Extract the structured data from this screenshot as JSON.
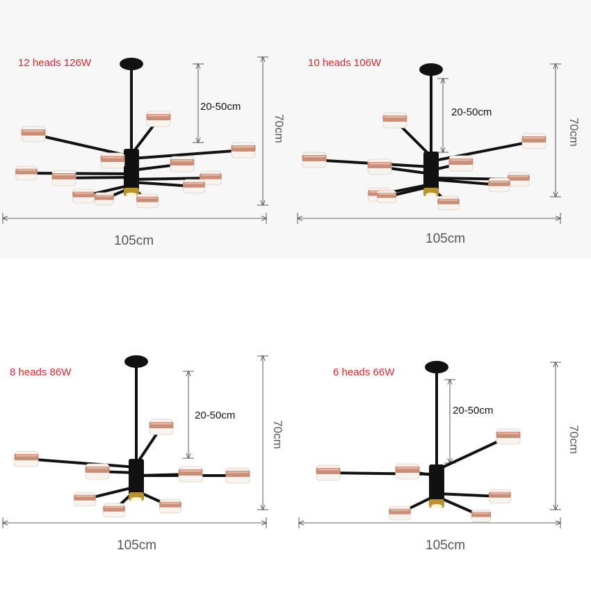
{
  "colors": {
    "accent_red": "#e0242d",
    "lamp_black": "#111111",
    "copper": "#c98d78",
    "shade": "#f8f3ef",
    "gold_ring": "#b8922e",
    "dim_line": "#666666",
    "panel_bg": "#f7f7f7"
  },
  "variants": [
    {
      "model": "12 heads 126W",
      "width": "105cm",
      "height": "70cm",
      "drop": "20-50cm",
      "heads": 12
    },
    {
      "model": "10 heads 106W",
      "width": "105cm",
      "height": "70cm",
      "drop": "20-50cm",
      "heads": 10
    },
    {
      "model": "8 heads 86W",
      "width": "105cm",
      "height": "70cm",
      "drop": "20-50cm",
      "heads": 8
    },
    {
      "model": "6 heads 66W",
      "width": "105cm",
      "height": "70cm",
      "drop": "20-50cm",
      "heads": 6
    }
  ]
}
